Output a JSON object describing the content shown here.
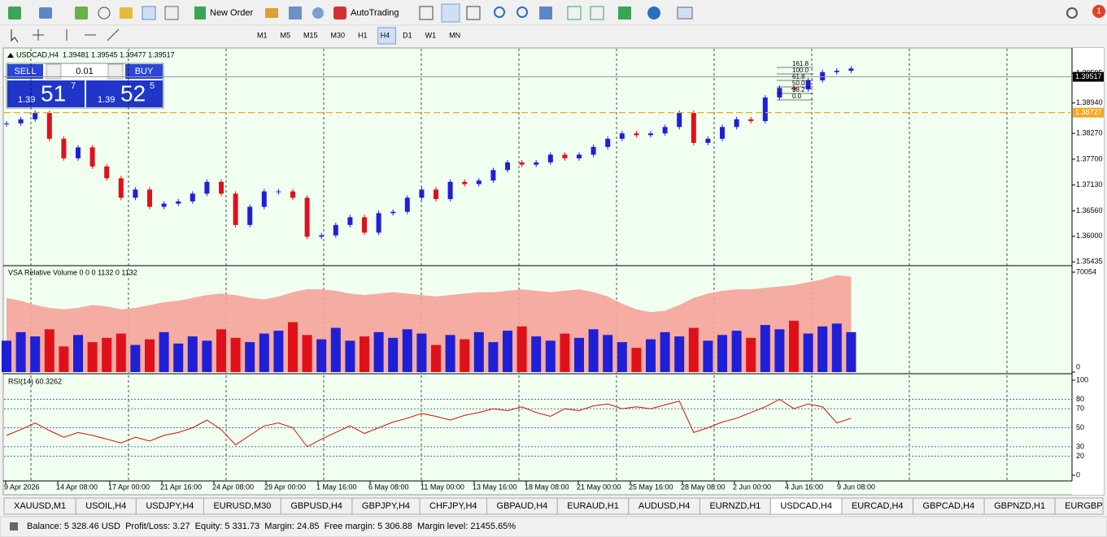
{
  "toolbar": {
    "new_order": "New Order",
    "auto_trading": "AutoTrading",
    "timeframes": [
      "M1",
      "M5",
      "M15",
      "M30",
      "H1",
      "H4",
      "D1",
      "W1",
      "MN"
    ],
    "active_timeframe_index": 5,
    "notification_count": "1"
  },
  "trade_panel": {
    "sell": "SELL",
    "buy": "BUY",
    "lot": "0.01",
    "sell_big": "1.39",
    "sell_pips": "51",
    "sell_frac": "7",
    "buy_big": "1.39",
    "buy_pips": "52",
    "buy_frac": "5"
  },
  "fibonacci_labels": [
    "161.8",
    "100.0",
    "61.8",
    "50.0",
    "38.2",
    "0.0"
  ],
  "time_axis": {
    "labels": [
      "9 Apr 2026",
      "14 Apr 08:00",
      "17 Apr 00:00",
      "21 Apr 16:00",
      "24 Apr 08:00",
      "29 Apr 00:00",
      "1 May 16:00",
      "6 May 08:00",
      "11 May 00:00",
      "13 May 16:00",
      "18 May 08:00",
      "21 May 00:00",
      "25 May 16:00",
      "28 May 08:00",
      "2 Jun 00:00",
      "4 Jun 16:00",
      "9 Jun 08:00"
    ]
  },
  "chart_data": [
    {
      "type": "candlestick",
      "title": "USDCAD,H4  1.39481 1.39545 1.39477 1.39517",
      "up_color": "#1f1fd6",
      "down_color": "#e0101a",
      "values": [
        1.3849,
        1.3858,
        1.3872,
        1.3815,
        1.3772,
        1.3796,
        1.3754,
        1.3728,
        1.3685,
        1.3703,
        1.3665,
        1.3672,
        1.3677,
        1.3694,
        1.372,
        1.3694,
        1.3625,
        1.3665,
        1.3699,
        1.3699,
        1.3685,
        1.3599,
        1.3602,
        1.3625,
        1.3642,
        1.3608,
        1.3651,
        1.3654,
        1.3685,
        1.3703,
        1.3682,
        1.372,
        1.3715,
        1.3723,
        1.3746,
        1.3763,
        1.3758,
        1.3763,
        1.378,
        1.3772,
        1.378,
        1.3797,
        1.3815,
        1.3827,
        1.3823,
        1.3827,
        1.3841,
        1.3872,
        1.3806,
        1.3815,
        1.3841,
        1.3858,
        1.3854,
        1.3906,
        1.3927,
        1.3924,
        1.3944,
        1.3962,
        1.3965,
        1.397
      ],
      "ylim": [
        1.3537,
        1.401
      ],
      "yticks": [
        1.39595,
        {
          "value": 1.3894,
          "label": "1.38940"
        },
        {
          "value": 1.3827,
          "label": "1.38270"
        },
        {
          "value": 1.377,
          "label": "1.37700"
        },
        {
          "value": 1.3713,
          "label": "1.37130"
        },
        {
          "value": 1.3656,
          "label": "1.36560"
        },
        {
          "value": 1.36,
          "label": "1.36000"
        },
        1.35435
      ],
      "bid": 1.39517,
      "level": 1.38727,
      "level_color": "#f5a623"
    },
    {
      "type": "bar",
      "title": "VSA Relative Volume 0 0 0 1132 0 1132",
      "band_color": "#f4a39a",
      "band": [
        52000,
        50000,
        47000,
        45000,
        44000,
        45000,
        47000,
        46000,
        44000,
        45000,
        47000,
        49000,
        50000,
        52000,
        54000,
        55000,
        54000,
        52000,
        51000,
        53000,
        56000,
        58000,
        58000,
        57000,
        55000,
        54000,
        55000,
        56000,
        55000,
        54000,
        53000,
        54000,
        55000,
        56000,
        56000,
        57000,
        58000,
        57000,
        56000,
        57000,
        58000,
        56000,
        53000,
        48000,
        44000,
        42000,
        43000,
        47000,
        52000,
        55000,
        57000,
        58000,
        58000,
        59000,
        60000,
        61000,
        63000,
        65000,
        68000,
        67000
      ],
      "values": [
        22000,
        28000,
        25000,
        30000,
        18000,
        26000,
        21000,
        24000,
        27000,
        19000,
        23000,
        28000,
        20000,
        25000,
        22000,
        30000,
        24000,
        21000,
        27000,
        29000,
        35000,
        26000,
        23000,
        31000,
        22000,
        25000,
        28000,
        24000,
        30000,
        27000,
        19000,
        26000,
        23000,
        28000,
        21000,
        29000,
        32000,
        25000,
        22000,
        27000,
        24000,
        30000,
        26000,
        21000,
        17000,
        23000,
        28000,
        25000,
        31000,
        22000,
        26000,
        29000,
        24000,
        33000,
        30000,
        36000,
        27000,
        32000,
        34000,
        28000
      ],
      "ylim": [
        0,
        70054
      ],
      "yticks": [
        0,
        70054
      ]
    },
    {
      "type": "line",
      "title": "RSI(14) 60.3262",
      "color": "#d01010",
      "values": [
        42,
        48,
        55,
        47,
        40,
        45,
        42,
        38,
        34,
        40,
        36,
        42,
        45,
        50,
        58,
        48,
        32,
        42,
        52,
        55,
        50,
        30,
        38,
        45,
        52,
        44,
        50,
        56,
        60,
        65,
        62,
        58,
        63,
        66,
        70,
        68,
        72,
        66,
        62,
        70,
        68,
        73,
        75,
        70,
        72,
        70,
        74,
        78,
        45,
        50,
        56,
        60,
        66,
        72,
        80,
        70,
        75,
        72,
        55,
        60
      ],
      "ylim": [
        0,
        100
      ],
      "yticks": [
        0,
        20,
        30,
        50,
        70,
        80,
        100
      ]
    }
  ],
  "tabs": {
    "items": [
      "XAUUSD,M1",
      "USOIL,H4",
      "USDJPY,H4",
      "EURUSD,M30",
      "GBPUSD,H4",
      "GBPJPY,H4",
      "CHFJPY,H4",
      "GBPAUD,H4",
      "EURAUD,H1",
      "AUDUSD,H4",
      "EURNZD,H1",
      "USDCAD,H4",
      "EURCAD,H4",
      "GBPCAD,H4",
      "GBPNZD,H1",
      "EURGBP"
    ],
    "active_index": 11
  },
  "status": "Balance: 5 328.46 USD  Profit/Loss: 3.27  Equity: 5 331.73  Margin: 24.85  Free margin: 5 306.88  Margin level: 21455.65%"
}
